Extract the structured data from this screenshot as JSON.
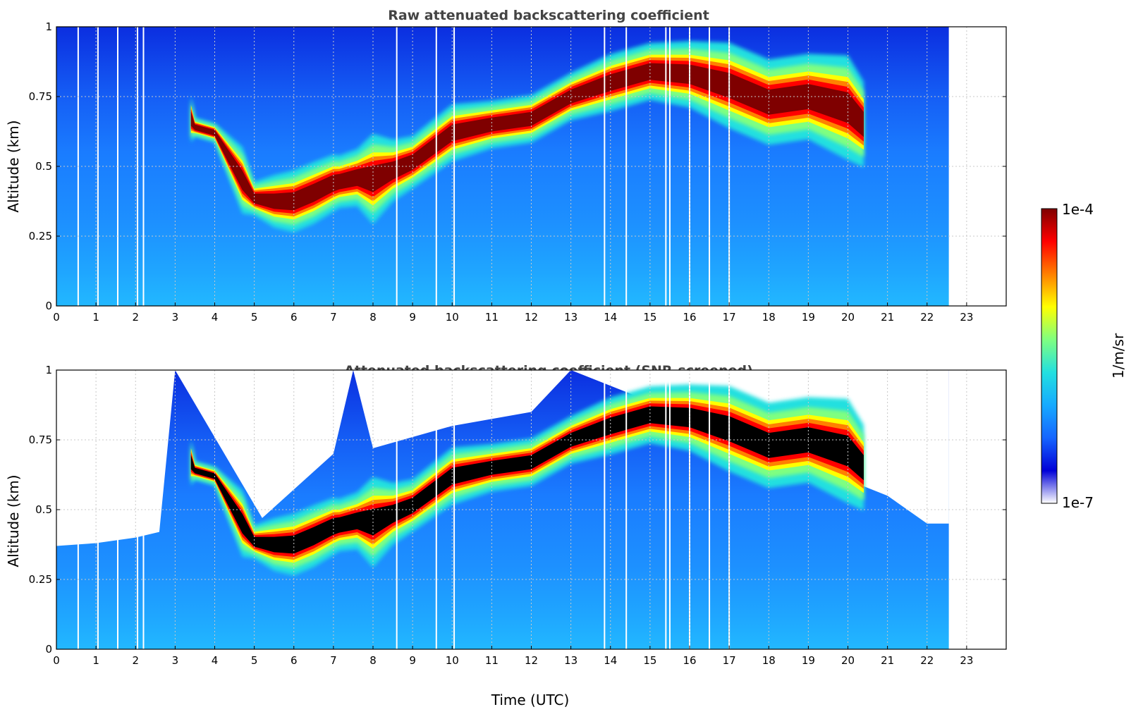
{
  "colormap": [
    "#ffffff",
    "#0000d8",
    "#1565ff",
    "#16aaff",
    "#22e0e0",
    "#7fff80",
    "#ffff00",
    "#ff8000",
    "#ff0000",
    "#7f0000"
  ],
  "snr_max_color": "#000000",
  "colorbar": {
    "label": "1/m/sr",
    "max_label": "1e-4",
    "min_label": "1e-7"
  },
  "chart_data": [
    {
      "type": "heatmap",
      "title": "Raw attenuated backscattering coefficient",
      "ylabel": "Altitude (km)",
      "xlabel": "",
      "xlim": [
        0,
        24
      ],
      "ylim": [
        0,
        1
      ],
      "x_ticks": [
        "0",
        "1",
        "2",
        "3",
        "4",
        "5",
        "6",
        "7",
        "8",
        "9",
        "10",
        "11",
        "12",
        "13",
        "14",
        "15",
        "16",
        "17",
        "18",
        "19",
        "20",
        "21",
        "22",
        "23"
      ],
      "y_ticks": [
        "0",
        "0.25",
        "0.5",
        "0.75",
        "1"
      ],
      "grid": true,
      "data_end_time": 22.55,
      "gap_times": [
        0.55,
        1.05,
        1.55,
        2.05,
        2.2,
        8.6,
        9.6,
        10.05,
        13.85,
        14.4,
        15.4,
        15.5,
        16.0,
        16.5,
        17.0
      ],
      "screened": false,
      "layer_top": [
        [
          3.4,
          0.72
        ],
        [
          3.5,
          0.66
        ],
        [
          4.0,
          0.64
        ],
        [
          4.7,
          0.52
        ],
        [
          5.0,
          0.42
        ],
        [
          5.5,
          0.43
        ],
        [
          6.0,
          0.44
        ],
        [
          6.5,
          0.47
        ],
        [
          7.0,
          0.5
        ],
        [
          7.15,
          0.5
        ],
        [
          7.6,
          0.52
        ],
        [
          8.0,
          0.55
        ],
        [
          8.5,
          0.55
        ],
        [
          9.0,
          0.57
        ],
        [
          10.0,
          0.68
        ],
        [
          11.0,
          0.7
        ],
        [
          12.0,
          0.72
        ],
        [
          12.5,
          0.76
        ],
        [
          13.0,
          0.8
        ],
        [
          14.0,
          0.86
        ],
        [
          15.0,
          0.9
        ],
        [
          16.0,
          0.9
        ],
        [
          17.0,
          0.88
        ],
        [
          18.0,
          0.82
        ],
        [
          19.0,
          0.84
        ],
        [
          20.0,
          0.82
        ],
        [
          20.4,
          0.74
        ]
      ],
      "layer_base": [
        [
          3.4,
          0.62
        ],
        [
          3.5,
          0.62
        ],
        [
          4.0,
          0.6
        ],
        [
          4.7,
          0.38
        ],
        [
          5.0,
          0.35
        ],
        [
          5.5,
          0.32
        ],
        [
          6.0,
          0.31
        ],
        [
          6.5,
          0.34
        ],
        [
          7.0,
          0.38
        ],
        [
          7.15,
          0.39
        ],
        [
          7.6,
          0.4
        ],
        [
          8.0,
          0.36
        ],
        [
          8.5,
          0.42
        ],
        [
          9.0,
          0.46
        ],
        [
          10.0,
          0.56
        ],
        [
          11.0,
          0.6
        ],
        [
          12.0,
          0.62
        ],
        [
          12.5,
          0.66
        ],
        [
          13.0,
          0.7
        ],
        [
          14.0,
          0.74
        ],
        [
          15.0,
          0.78
        ],
        [
          16.0,
          0.76
        ],
        [
          17.0,
          0.7
        ],
        [
          18.0,
          0.64
        ],
        [
          19.0,
          0.66
        ],
        [
          20.0,
          0.6
        ],
        [
          20.4,
          0.56
        ]
      ]
    },
    {
      "type": "heatmap",
      "title": "Attenuated backscattering coefficient (SNR-screened)",
      "ylabel": "Altitude (km)",
      "xlabel": "Time (UTC)",
      "xlim": [
        0,
        24
      ],
      "ylim": [
        0,
        1
      ],
      "x_ticks": [
        "0",
        "1",
        "2",
        "3",
        "4",
        "5",
        "6",
        "7",
        "8",
        "9",
        "10",
        "11",
        "12",
        "13",
        "14",
        "15",
        "16",
        "17",
        "18",
        "19",
        "20",
        "21",
        "22",
        "23"
      ],
      "y_ticks": [
        "0",
        "0.25",
        "0.5",
        "0.75",
        "1"
      ],
      "grid": true,
      "data_end_time": 22.55,
      "gap_times": [
        0.55,
        1.05,
        1.55,
        2.05,
        2.2,
        8.6,
        9.6,
        10.05,
        13.85,
        14.4,
        15.4,
        15.5,
        16.0,
        16.5,
        17.0
      ],
      "screened": true,
      "layer_top": [
        [
          3.4,
          0.72
        ],
        [
          3.5,
          0.66
        ],
        [
          4.0,
          0.64
        ],
        [
          4.7,
          0.52
        ],
        [
          5.0,
          0.42
        ],
        [
          5.5,
          0.43
        ],
        [
          6.0,
          0.44
        ],
        [
          6.5,
          0.47
        ],
        [
          7.0,
          0.5
        ],
        [
          7.15,
          0.5
        ],
        [
          7.6,
          0.52
        ],
        [
          8.0,
          0.55
        ],
        [
          8.5,
          0.55
        ],
        [
          9.0,
          0.57
        ],
        [
          10.0,
          0.68
        ],
        [
          11.0,
          0.7
        ],
        [
          12.0,
          0.72
        ],
        [
          12.5,
          0.76
        ],
        [
          13.0,
          0.8
        ],
        [
          14.0,
          0.86
        ],
        [
          15.0,
          0.9
        ],
        [
          16.0,
          0.9
        ],
        [
          17.0,
          0.88
        ],
        [
          18.0,
          0.82
        ],
        [
          19.0,
          0.84
        ],
        [
          20.0,
          0.82
        ],
        [
          20.4,
          0.74
        ]
      ],
      "layer_base": [
        [
          3.4,
          0.62
        ],
        [
          3.5,
          0.62
        ],
        [
          4.0,
          0.6
        ],
        [
          4.7,
          0.38
        ],
        [
          5.0,
          0.35
        ],
        [
          5.5,
          0.32
        ],
        [
          6.0,
          0.31
        ],
        [
          6.5,
          0.34
        ],
        [
          7.0,
          0.38
        ],
        [
          7.15,
          0.39
        ],
        [
          7.6,
          0.4
        ],
        [
          8.0,
          0.36
        ],
        [
          8.5,
          0.42
        ],
        [
          9.0,
          0.46
        ],
        [
          10.0,
          0.56
        ],
        [
          11.0,
          0.6
        ],
        [
          12.0,
          0.62
        ],
        [
          12.5,
          0.66
        ],
        [
          13.0,
          0.7
        ],
        [
          14.0,
          0.74
        ],
        [
          15.0,
          0.78
        ],
        [
          16.0,
          0.76
        ],
        [
          17.0,
          0.7
        ],
        [
          18.0,
          0.64
        ],
        [
          19.0,
          0.66
        ],
        [
          20.0,
          0.6
        ],
        [
          20.4,
          0.56
        ]
      ],
      "screened_out_top": [
        [
          0,
          0.37
        ],
        [
          1.0,
          0.38
        ],
        [
          2.0,
          0.4
        ],
        [
          2.6,
          0.42
        ],
        [
          3.0,
          1.0
        ],
        [
          5.2,
          0.47
        ],
        [
          7.0,
          0.7
        ],
        [
          7.5,
          1.0
        ],
        [
          8.0,
          0.72
        ],
        [
          9.0,
          0.76
        ],
        [
          10.0,
          0.8
        ],
        [
          12.0,
          0.85
        ],
        [
          13.0,
          1.0
        ],
        [
          21.0,
          0.55
        ],
        [
          22.0,
          0.45
        ],
        [
          22.55,
          0.45
        ]
      ]
    }
  ]
}
